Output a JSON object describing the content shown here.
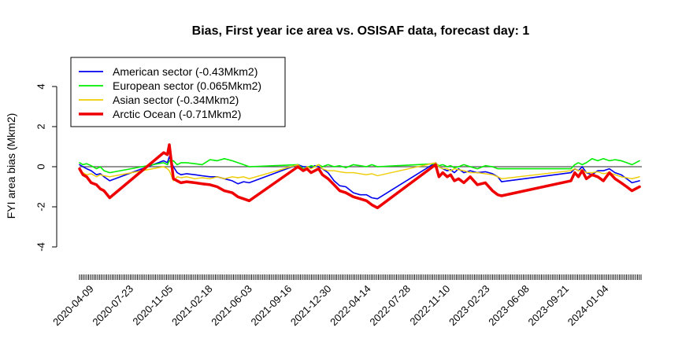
{
  "chart_data": {
    "type": "line",
    "title": "Bias, First year ice area vs. OSISAF data, forecast day: 1",
    "xlabel": "",
    "ylabel": "FYI area bias (Mkm2)",
    "ylim": [
      -4,
      4
    ],
    "yticks": [
      -4,
      -2,
      0,
      2,
      4
    ],
    "xlim": [
      "2020-03-01",
      "2024-03-31"
    ],
    "xticks": [
      "2020-04-09",
      "2020-07-23",
      "2020-11-05",
      "2021-02-18",
      "2021-06-03",
      "2021-09-16",
      "2021-12-30",
      "2022-04-14",
      "2022-07-28",
      "2022-11-10",
      "2023-02-23",
      "2023-06-08",
      "2023-09-21",
      "2024-01-04"
    ],
    "grid": false,
    "reference_line_y": 0,
    "legend_position": "top-left",
    "series": [
      {
        "name": "American sector (-0.43Mkm2)",
        "color": "#0000ee",
        "x": [
          "2020-03-01",
          "2020-03-10",
          "2020-03-20",
          "2020-04-01",
          "2020-04-15",
          "2020-04-25",
          "2020-05-05",
          "2020-05-20",
          "2020-10-10",
          "2020-10-20",
          "2020-10-25",
          "2020-11-05",
          "2020-11-15",
          "2020-11-25",
          "2020-12-10",
          "2021-01-01",
          "2021-01-20",
          "2021-02-10",
          "2021-03-01",
          "2021-03-20",
          "2021-04-10",
          "2021-04-25",
          "2021-05-10",
          "2021-05-25",
          "2021-10-01",
          "2021-10-15",
          "2021-10-25",
          "2021-11-05",
          "2021-11-15",
          "2021-11-25",
          "2021-12-05",
          "2021-12-20",
          "2022-01-05",
          "2022-01-20",
          "2022-02-05",
          "2022-02-25",
          "2022-03-15",
          "2022-04-01",
          "2022-04-15",
          "2022-04-30",
          "2022-10-01",
          "2022-10-10",
          "2022-10-20",
          "2022-11-01",
          "2022-11-10",
          "2022-11-20",
          "2022-12-01",
          "2022-12-15",
          "2023-01-01",
          "2023-01-20",
          "2023-02-10",
          "2023-03-01",
          "2023-03-15",
          "2023-03-25",
          "2023-09-25",
          "2023-10-05",
          "2023-10-15",
          "2023-10-25",
          "2023-11-05",
          "2023-11-20",
          "2023-12-05",
          "2023-12-20",
          "2024-01-05",
          "2024-01-20",
          "2024-02-05",
          "2024-02-20",
          "2024-03-05",
          "2024-03-25"
        ],
        "values": [
          0.1,
          0.0,
          -0.1,
          -0.2,
          -0.4,
          -0.35,
          -0.5,
          -0.7,
          0.3,
          0.2,
          0.5,
          0.0,
          -0.3,
          -0.4,
          -0.35,
          -0.4,
          -0.45,
          -0.5,
          -0.5,
          -0.6,
          -0.7,
          -0.85,
          -0.75,
          -0.8,
          0.1,
          0.0,
          0.0,
          -0.05,
          0.05,
          0.0,
          -0.1,
          -0.3,
          -0.7,
          -0.95,
          -1.0,
          -1.3,
          -1.4,
          -1.4,
          -1.55,
          -1.6,
          0.2,
          0.0,
          -0.1,
          -0.2,
          -0.15,
          -0.3,
          -0.1,
          -0.3,
          -0.2,
          -0.3,
          -0.25,
          -0.35,
          -0.5,
          -0.75,
          -0.3,
          -0.1,
          -0.2,
          0.0,
          -0.3,
          -0.4,
          -0.2,
          -0.2,
          -0.1,
          -0.3,
          -0.4,
          -0.6,
          -0.8,
          -0.7
        ]
      },
      {
        "name": "European sector (0.065Mkm2)",
        "color": "#00ee00",
        "x": [
          "2020-03-01",
          "2020-03-10",
          "2020-03-20",
          "2020-04-01",
          "2020-04-15",
          "2020-04-25",
          "2020-05-05",
          "2020-05-20",
          "2020-10-10",
          "2020-10-20",
          "2020-10-25",
          "2020-11-05",
          "2020-11-15",
          "2020-11-25",
          "2020-12-10",
          "2021-01-01",
          "2021-01-20",
          "2021-02-10",
          "2021-03-01",
          "2021-03-20",
          "2021-04-10",
          "2021-04-25",
          "2021-05-10",
          "2021-05-25",
          "2021-10-01",
          "2021-10-15",
          "2021-10-25",
          "2021-11-05",
          "2021-11-15",
          "2021-11-25",
          "2021-12-05",
          "2021-12-20",
          "2022-01-05",
          "2022-01-20",
          "2022-02-05",
          "2022-02-25",
          "2022-03-15",
          "2022-04-01",
          "2022-04-15",
          "2022-04-30",
          "2022-10-01",
          "2022-10-10",
          "2022-10-20",
          "2022-11-01",
          "2022-11-10",
          "2022-11-20",
          "2022-12-01",
          "2022-12-15",
          "2023-01-01",
          "2023-01-20",
          "2023-02-10",
          "2023-03-01",
          "2023-03-15",
          "2023-03-25",
          "2023-09-25",
          "2023-10-05",
          "2023-10-15",
          "2023-10-25",
          "2023-11-05",
          "2023-11-20",
          "2023-12-05",
          "2023-12-20",
          "2024-01-05",
          "2024-01-20",
          "2024-02-05",
          "2024-02-20",
          "2024-03-05",
          "2024-03-25"
        ],
        "values": [
          0.2,
          0.1,
          0.15,
          0.05,
          -0.1,
          0.0,
          -0.2,
          -0.3,
          0.2,
          0.1,
          0.3,
          0.3,
          0.1,
          0.2,
          0.2,
          0.15,
          0.1,
          0.35,
          0.3,
          0.4,
          0.3,
          0.2,
          0.1,
          0.0,
          0.1,
          -0.1,
          -0.05,
          0.05,
          0.0,
          0.1,
          0.0,
          0.1,
          0.0,
          0.05,
          -0.05,
          0.1,
          0.05,
          0.0,
          0.1,
          0.0,
          0.15,
          0.05,
          0.1,
          0.0,
          0.05,
          -0.05,
          0.0,
          0.1,
          0.0,
          -0.1,
          0.05,
          0.0,
          -0.1,
          -0.1,
          -0.1,
          0.1,
          0.2,
          0.1,
          0.2,
          0.4,
          0.3,
          0.4,
          0.3,
          0.35,
          0.3,
          0.2,
          0.1,
          0.3
        ]
      },
      {
        "name": "Asian sector (-0.34Mkm2)",
        "color": "#eecc00",
        "x": [
          "2020-03-01",
          "2020-03-10",
          "2020-03-20",
          "2020-04-01",
          "2020-04-15",
          "2020-04-25",
          "2020-05-05",
          "2020-05-20",
          "2020-10-10",
          "2020-10-20",
          "2020-10-25",
          "2020-11-05",
          "2020-11-15",
          "2020-11-25",
          "2020-12-10",
          "2021-01-01",
          "2021-01-20",
          "2021-02-10",
          "2021-03-01",
          "2021-03-20",
          "2021-04-10",
          "2021-04-25",
          "2021-05-10",
          "2021-05-25",
          "2021-10-01",
          "2021-10-15",
          "2021-10-25",
          "2021-11-05",
          "2021-11-15",
          "2021-11-25",
          "2021-12-05",
          "2021-12-20",
          "2022-01-05",
          "2022-01-20",
          "2022-02-05",
          "2022-02-25",
          "2022-03-15",
          "2022-04-01",
          "2022-04-15",
          "2022-04-30",
          "2022-10-01",
          "2022-10-10",
          "2022-10-20",
          "2022-11-01",
          "2022-11-10",
          "2022-11-20",
          "2022-12-01",
          "2022-12-15",
          "2023-01-01",
          "2023-01-20",
          "2023-02-10",
          "2023-03-01",
          "2023-03-15",
          "2023-03-25",
          "2023-09-25",
          "2023-10-05",
          "2023-10-15",
          "2023-10-25",
          "2023-11-05",
          "2023-11-20",
          "2023-12-05",
          "2023-12-20",
          "2024-01-05",
          "2024-01-20",
          "2024-02-05",
          "2024-02-20",
          "2024-03-05",
          "2024-03-25"
        ],
        "values": [
          -0.2,
          -0.3,
          -0.4,
          -0.35,
          -0.5,
          -0.4,
          -0.45,
          -0.5,
          0.0,
          -0.1,
          -0.2,
          -0.7,
          -0.5,
          -0.55,
          -0.5,
          -0.6,
          -0.55,
          -0.6,
          -0.5,
          -0.6,
          -0.5,
          -0.55,
          -0.5,
          -0.6,
          0.1,
          -0.2,
          0.0,
          -0.1,
          0.0,
          0.1,
          -0.1,
          -0.2,
          -0.2,
          -0.25,
          -0.3,
          -0.3,
          -0.35,
          -0.4,
          -0.35,
          -0.45,
          0.2,
          0.0,
          -0.1,
          -0.1,
          -0.2,
          -0.1,
          -0.15,
          -0.2,
          -0.3,
          -0.3,
          -0.35,
          -0.4,
          -0.5,
          -0.6,
          -0.2,
          -0.1,
          -0.2,
          -0.15,
          -0.3,
          -0.3,
          -0.25,
          -0.35,
          -0.3,
          -0.4,
          -0.5,
          -0.55,
          -0.6,
          -0.5
        ]
      },
      {
        "name": "Arctic Ocean (-0.71Mkm2)",
        "color": "#ee0000",
        "x": [
          "2020-03-01",
          "2020-03-10",
          "2020-03-20",
          "2020-04-01",
          "2020-04-15",
          "2020-04-25",
          "2020-05-05",
          "2020-05-20",
          "2020-10-10",
          "2020-10-20",
          "2020-10-25",
          "2020-11-05",
          "2020-11-15",
          "2020-11-25",
          "2020-12-10",
          "2021-01-01",
          "2021-01-20",
          "2021-02-10",
          "2021-03-01",
          "2021-03-20",
          "2021-04-10",
          "2021-04-25",
          "2021-05-10",
          "2021-05-25",
          "2021-10-01",
          "2021-10-15",
          "2021-10-25",
          "2021-11-05",
          "2021-11-15",
          "2021-11-25",
          "2021-12-05",
          "2021-12-20",
          "2022-01-05",
          "2022-01-20",
          "2022-02-05",
          "2022-02-25",
          "2022-03-15",
          "2022-04-01",
          "2022-04-15",
          "2022-04-30",
          "2022-10-01",
          "2022-10-10",
          "2022-10-20",
          "2022-11-01",
          "2022-11-10",
          "2022-11-20",
          "2022-12-01",
          "2022-12-15",
          "2023-01-01",
          "2023-01-20",
          "2023-02-10",
          "2023-03-01",
          "2023-03-15",
          "2023-03-25",
          "2023-09-25",
          "2023-10-05",
          "2023-10-15",
          "2023-10-25",
          "2023-11-05",
          "2023-11-20",
          "2023-12-05",
          "2023-12-20",
          "2024-01-05",
          "2024-01-20",
          "2024-02-05",
          "2024-02-20",
          "2024-03-05",
          "2024-03-25"
        ],
        "values": [
          -0.1,
          -0.4,
          -0.5,
          -0.8,
          -0.9,
          -1.1,
          -1.2,
          -1.55,
          0.7,
          0.6,
          1.1,
          -0.6,
          -0.7,
          -0.8,
          -0.75,
          -0.8,
          -0.85,
          -0.9,
          -1.0,
          -1.2,
          -1.3,
          -1.5,
          -1.6,
          -1.7,
          0.0,
          -0.2,
          -0.1,
          -0.3,
          -0.2,
          -0.1,
          -0.4,
          -0.6,
          -0.9,
          -1.2,
          -1.3,
          -1.5,
          -1.6,
          -1.7,
          -1.9,
          -2.05,
          0.1,
          -0.5,
          -0.3,
          -0.5,
          -0.4,
          -0.7,
          -0.6,
          -0.8,
          -0.5,
          -0.9,
          -0.8,
          -1.2,
          -1.4,
          -1.45,
          -0.7,
          -0.3,
          -0.5,
          -0.2,
          -0.6,
          -0.4,
          -0.5,
          -0.7,
          -0.3,
          -0.6,
          -0.8,
          -1.0,
          -1.2,
          -1.0
        ]
      }
    ]
  }
}
